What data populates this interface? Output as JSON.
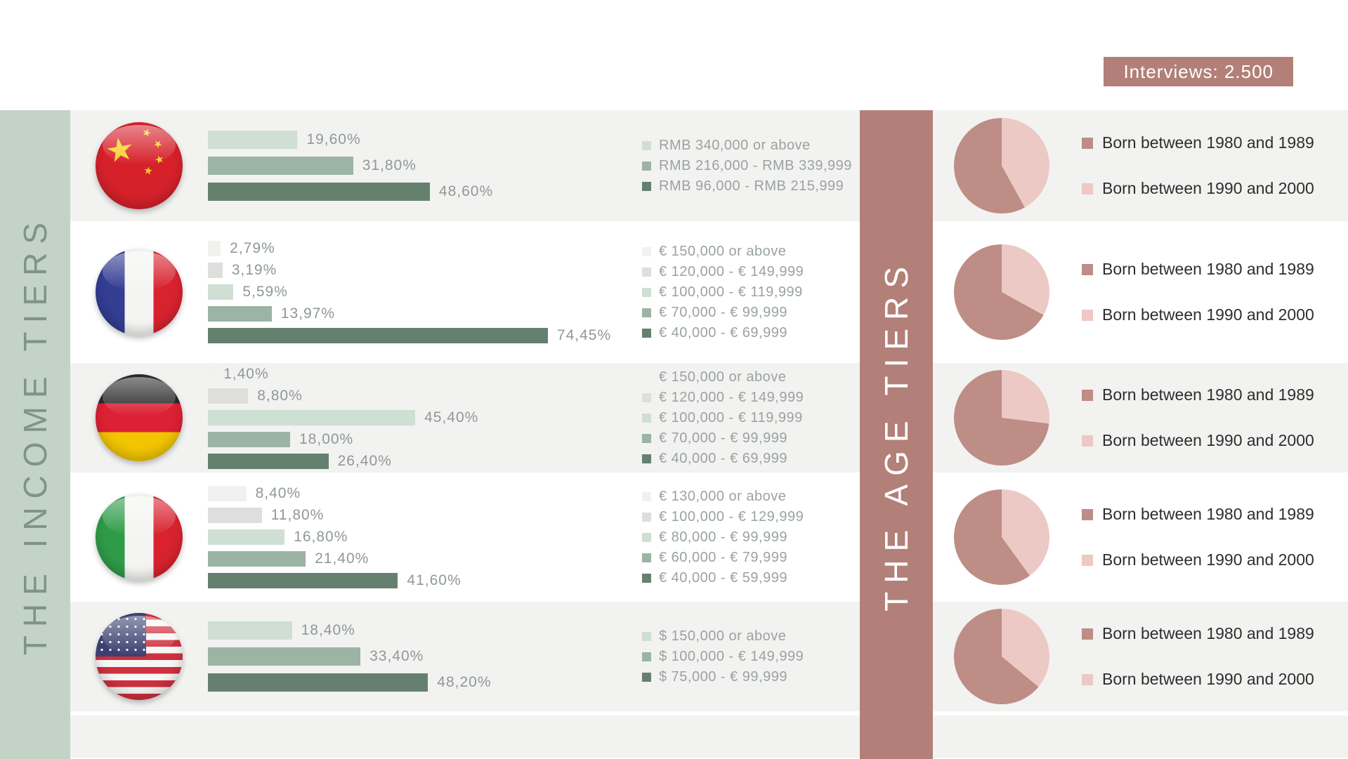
{
  "badge": {
    "label": "Interviews: 2.500"
  },
  "left_band": {
    "label": "THE INCOME TIERS"
  },
  "middle_band": {
    "label": "THE AGE TIERS"
  },
  "age_legend": [
    {
      "label": "Born between 1980 and 1989",
      "color_key": "pie_dark"
    },
    {
      "label": "Born between 1990 and 2000",
      "color_key": "pie_light"
    }
  ],
  "colors": {
    "row_stripe": "#f2f2f1",
    "sage_band_bg": "#c3d4c6",
    "sage_band_text": "#7e948b",
    "rose_band_bg": "#b28079",
    "badge_bg": "#b28079",
    "pie_dark": "#bd8d86",
    "pie_light": "#ecc9c4",
    "percent_text": "#8f9997",
    "income_legend_text": "#9aa3a0",
    "age_legend_text": "#2e2e2e",
    "bar_tiers": {
      "1": "#f1f1ef",
      "2": "#dededc",
      "3": "#cfdfd3",
      "4": "#9cb4a3",
      "5": "#65806f"
    }
  },
  "rows": [
    {
      "country": "china",
      "striped": true,
      "bars": [
        {
          "label": "19,60%",
          "value": 19.6,
          "tier": 3
        },
        {
          "label": "31,80%",
          "value": 31.8,
          "tier": 4
        },
        {
          "label": "48,60%",
          "value": 48.6,
          "tier": 5
        }
      ],
      "income_legend": [
        {
          "label": "RMB 340,000 or above",
          "tier": 3
        },
        {
          "label": "RMB 216,000 - RMB 339,999",
          "tier": 4
        },
        {
          "label": "RMB 96,000 - RMB 215,999",
          "tier": 5
        }
      ],
      "pie": {
        "born_1980_1989_pct": 58,
        "born_1990_2000_pct": 42
      }
    },
    {
      "country": "france",
      "striped": false,
      "bars": [
        {
          "label": "2,79%",
          "value": 2.79,
          "tier": 1
        },
        {
          "label": "3,19%",
          "value": 3.19,
          "tier": 2
        },
        {
          "label": "5,59%",
          "value": 5.59,
          "tier": 3
        },
        {
          "label": "13,97%",
          "value": 13.97,
          "tier": 4
        },
        {
          "label": "74,45%",
          "value": 74.45,
          "tier": 5
        }
      ],
      "income_legend": [
        {
          "label": "€ 150,000 or above",
          "tier": 1
        },
        {
          "label": "€ 120,000 - € 149,999",
          "tier": 2
        },
        {
          "label": "€ 100,000 - € 119,999",
          "tier": 3
        },
        {
          "label": "€ 70,000 - € 99,999",
          "tier": 4
        },
        {
          "label": "€ 40,000 - € 69,999",
          "tier": 5
        }
      ],
      "pie": {
        "born_1980_1989_pct": 67,
        "born_1990_2000_pct": 33
      }
    },
    {
      "country": "germany",
      "striped": true,
      "bars": [
        {
          "label": "1,40%",
          "value": 1.4,
          "tier": 1
        },
        {
          "label": "8,80%",
          "value": 8.8,
          "tier": 2
        },
        {
          "label": "45,40%",
          "value": 45.4,
          "tier": 3
        },
        {
          "label": "18,00%",
          "value": 18.0,
          "tier": 4
        },
        {
          "label": "26,40%",
          "value": 26.4,
          "tier": 5
        }
      ],
      "income_legend": [
        {
          "label": "€ 150,000 or above",
          "tier": 1
        },
        {
          "label": "€ 120,000 - € 149,999",
          "tier": 2
        },
        {
          "label": "€ 100,000 - € 119,999",
          "tier": 3
        },
        {
          "label": "€ 70,000 - € 99,999",
          "tier": 4
        },
        {
          "label": "€ 40,000 - € 69,999",
          "tier": 5
        }
      ],
      "pie": {
        "born_1980_1989_pct": 73,
        "born_1990_2000_pct": 27
      }
    },
    {
      "country": "italy",
      "striped": false,
      "bars": [
        {
          "label": "8,40%",
          "value": 8.4,
          "tier": 1
        },
        {
          "label": "11,80%",
          "value": 11.8,
          "tier": 2
        },
        {
          "label": "16,80%",
          "value": 16.8,
          "tier": 3
        },
        {
          "label": "21,40%",
          "value": 21.4,
          "tier": 4
        },
        {
          "label": "41,60%",
          "value": 41.6,
          "tier": 5
        }
      ],
      "income_legend": [
        {
          "label": "€ 130,000 or above",
          "tier": 1
        },
        {
          "label": "€ 100,000 - € 129,999",
          "tier": 2
        },
        {
          "label": "€ 80,000 - € 99,999",
          "tier": 3
        },
        {
          "label": "€ 60,000 - € 79,999",
          "tier": 4
        },
        {
          "label": "€ 40,000 - € 59,999",
          "tier": 5
        }
      ],
      "pie": {
        "born_1980_1989_pct": 60,
        "born_1990_2000_pct": 40
      }
    },
    {
      "country": "usa",
      "striped": true,
      "bars": [
        {
          "label": "18,40%",
          "value": 18.4,
          "tier": 3
        },
        {
          "label": "33,40%",
          "value": 33.4,
          "tier": 4
        },
        {
          "label": "48,20%",
          "value": 48.2,
          "tier": 5
        }
      ],
      "income_legend": [
        {
          "label": "$ 150,000 or above",
          "tier": 3
        },
        {
          "label": "$ 100,000 - € 149,999",
          "tier": 4
        },
        {
          "label": "$ 75,000 - € 99,999",
          "tier": 5
        }
      ],
      "pie": {
        "born_1980_1989_pct": 64,
        "born_1990_2000_pct": 36
      }
    }
  ],
  "chart_data": [
    {
      "type": "bar",
      "title": "China income tiers (% of interviewees)",
      "categories": [
        "RMB 340,000 or above",
        "RMB 216,000 - RMB 339,999",
        "RMB 96,000 - RMB 215,999"
      ],
      "values": [
        19.6,
        31.8,
        48.6
      ],
      "xlabel": "",
      "ylabel": "%",
      "xlim": [
        0,
        100
      ]
    },
    {
      "type": "pie",
      "title": "China age tiers (estimated from pie)",
      "labels": [
        "Born between 1980 and 1989",
        "Born between 1990 and 2000"
      ],
      "values": [
        58,
        42
      ]
    },
    {
      "type": "bar",
      "title": "France income tiers (% of interviewees)",
      "categories": [
        "€ 150,000 or above",
        "€ 120,000 - € 149,999",
        "€ 100,000 - € 119,999",
        "€ 70,000 - € 99,999",
        "€ 40,000 - € 69,999"
      ],
      "values": [
        2.79,
        3.19,
        5.59,
        13.97,
        74.45
      ],
      "xlabel": "",
      "ylabel": "%",
      "xlim": [
        0,
        100
      ]
    },
    {
      "type": "pie",
      "title": "France age tiers (estimated from pie)",
      "labels": [
        "Born between 1980 and 1989",
        "Born between 1990 and 2000"
      ],
      "values": [
        67,
        33
      ]
    },
    {
      "type": "bar",
      "title": "Germany income tiers (% of interviewees)",
      "categories": [
        "€ 150,000 or above",
        "€ 120,000 - € 149,999",
        "€ 100,000 - € 119,999",
        "€ 70,000 - € 99,999",
        "€ 40,000 - € 69,999"
      ],
      "values": [
        1.4,
        8.8,
        45.4,
        18.0,
        26.4
      ],
      "xlabel": "",
      "ylabel": "%",
      "xlim": [
        0,
        100
      ]
    },
    {
      "type": "pie",
      "title": "Germany age tiers (estimated from pie)",
      "labels": [
        "Born between 1980 and 1989",
        "Born between 1990 and 2000"
      ],
      "values": [
        73,
        27
      ]
    },
    {
      "type": "bar",
      "title": "Italy income tiers (% of interviewees)",
      "categories": [
        "€ 130,000 or above",
        "€ 100,000 - € 129,999",
        "€ 80,000 - € 99,999",
        "€ 60,000 - € 79,999",
        "€ 40,000 - € 59,999"
      ],
      "values": [
        8.4,
        11.8,
        16.8,
        21.4,
        41.6
      ],
      "xlabel": "",
      "ylabel": "%",
      "xlim": [
        0,
        100
      ]
    },
    {
      "type": "pie",
      "title": "Italy age tiers (estimated from pie)",
      "labels": [
        "Born between 1980 and 1989",
        "Born between 1990 and 2000"
      ],
      "values": [
        60,
        40
      ]
    },
    {
      "type": "bar",
      "title": "USA income tiers (% of interviewees)",
      "categories": [
        "$ 150,000 or above",
        "$ 100,000 - € 149,999",
        "$ 75,000 - € 99,999"
      ],
      "values": [
        18.4,
        33.4,
        48.2
      ],
      "xlabel": "",
      "ylabel": "%",
      "xlim": [
        0,
        100
      ]
    },
    {
      "type": "pie",
      "title": "USA age tiers (estimated from pie)",
      "labels": [
        "Born between 1980 and 1989",
        "Born between 1990 and 2000"
      ],
      "values": [
        64,
        36
      ]
    }
  ]
}
